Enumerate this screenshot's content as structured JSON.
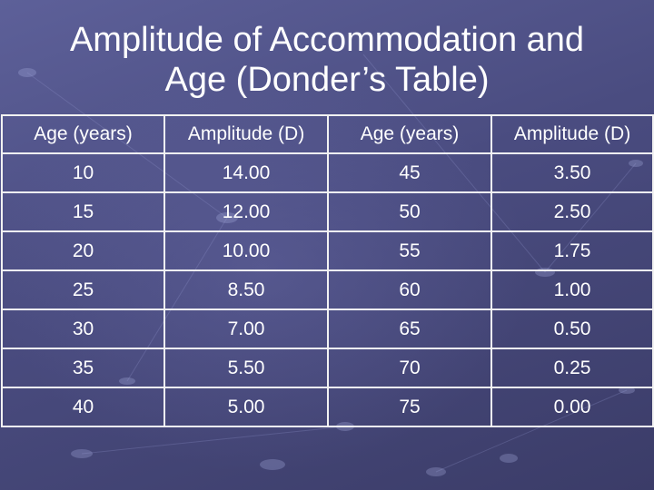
{
  "slide": {
    "title_line1": "Amplitude of Accommodation and",
    "title_line2": "Age (Donder’s Table)"
  },
  "table": {
    "headers": [
      "Age (years)",
      "Amplitude (D)",
      "Age (years)",
      "Amplitude (D)"
    ],
    "rows": [
      [
        "10",
        "14.00",
        "45",
        "3.50"
      ],
      [
        "15",
        "12.00",
        "50",
        "2.50"
      ],
      [
        "20",
        "10.00",
        "55",
        "1.75"
      ],
      [
        "25",
        "8.50",
        "60",
        "1.00"
      ],
      [
        "30",
        "7.00",
        "65",
        "0.50"
      ],
      [
        "35",
        "5.50",
        "70",
        "0.25"
      ],
      [
        "40",
        "5.00",
        "75",
        "0.00"
      ]
    ]
  },
  "colors": {
    "background": "#4a4c80",
    "text": "#ffffff",
    "grid": "#f2f2f2"
  }
}
